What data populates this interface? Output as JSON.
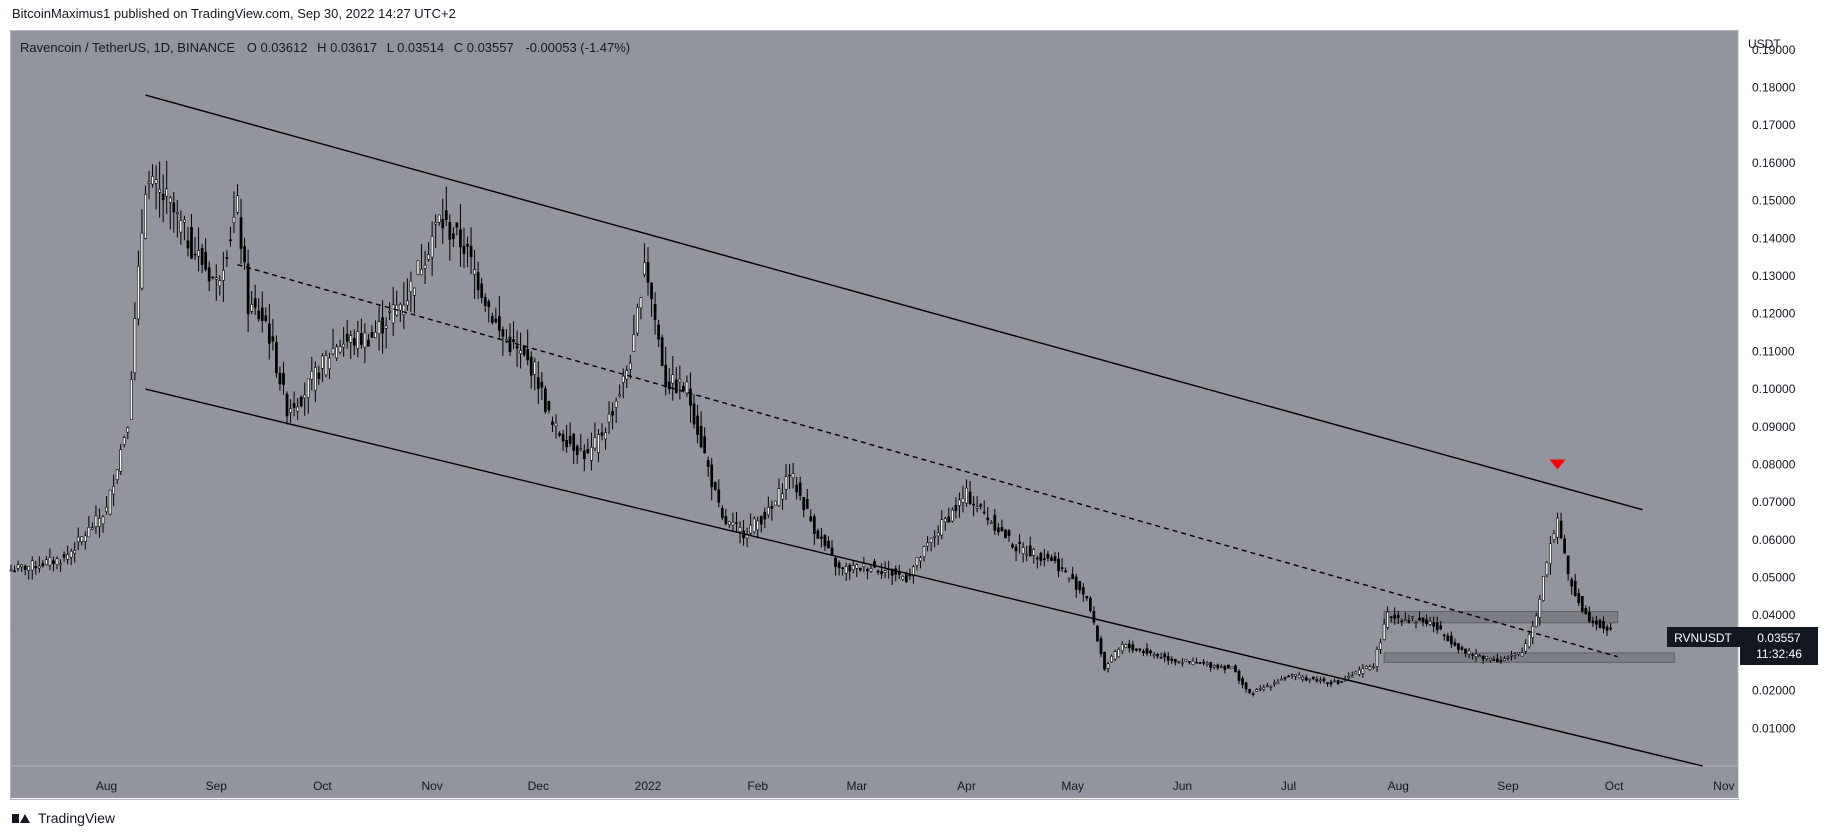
{
  "header": {
    "published": "BitcoinMaximus1 published on TradingView.com, Sep 30, 2022 14:27 UTC+2"
  },
  "legend": {
    "symbol": "Ravencoin / TetherUS, 1D, BINANCE",
    "o_label": "O",
    "o_value": "0.03612",
    "h_label": "H",
    "h_value": "0.03617",
    "l_label": "L",
    "l_value": "0.03514",
    "c_label": "C",
    "c_value": "0.03557",
    "change": "-0.00053 (-1.47%)"
  },
  "price_axis": {
    "currency": "USDT",
    "ticks": [
      "0.19000",
      "0.18000",
      "0.17000",
      "0.16000",
      "0.15000",
      "0.14000",
      "0.13000",
      "0.12000",
      "0.11000",
      "0.10000",
      "0.09000",
      "0.08000",
      "0.07000",
      "0.06000",
      "0.05000",
      "0.04000",
      "0.03000",
      "0.02000",
      "0.01000"
    ]
  },
  "time_axis": {
    "ticks": [
      "Aug",
      "Sep",
      "Oct",
      "Nov",
      "Dec",
      "2022",
      "Feb",
      "Mar",
      "Apr",
      "May",
      "Jun",
      "Jul",
      "Aug",
      "Sep",
      "Oct",
      "Nov"
    ]
  },
  "price_label": {
    "symbol": "RVNUSDT",
    "price": "0.03557",
    "countdown": "11:32:46"
  },
  "footer": {
    "brand": "TradingView"
  },
  "colors": {
    "background": "#93959e",
    "candle": "#000000",
    "marker": "#ff0000",
    "zone": "#7c7e86"
  },
  "chart_data": {
    "type": "candlestick",
    "title": "Ravencoin / TetherUS, 1D, BINANCE",
    "ylabel": "USDT",
    "ylim": [
      0,
      0.195
    ],
    "x_range": [
      "2021-07-05",
      "2022-11-05"
    ],
    "series": [
      {
        "name": "RVNUSDT",
        "close_path": [
          [
            "2021-07-05",
            0.052
          ],
          [
            "2021-07-20",
            0.055
          ],
          [
            "2021-08-01",
            0.068
          ],
          [
            "2021-08-07",
            0.092
          ],
          [
            "2021-08-12",
            0.155
          ],
          [
            "2021-08-18",
            0.15
          ],
          [
            "2021-08-25",
            0.138
          ],
          [
            "2021-09-01",
            0.128
          ],
          [
            "2021-09-07",
            0.148
          ],
          [
            "2021-09-10",
            0.122
          ],
          [
            "2021-09-15",
            0.118
          ],
          [
            "2021-09-21",
            0.095
          ],
          [
            "2021-09-25",
            0.098
          ],
          [
            "2021-10-05",
            0.112
          ],
          [
            "2021-10-15",
            0.114
          ],
          [
            "2021-10-25",
            0.125
          ],
          [
            "2021-11-03",
            0.145
          ],
          [
            "2021-11-10",
            0.138
          ],
          [
            "2021-11-20",
            0.115
          ],
          [
            "2021-11-30",
            0.105
          ],
          [
            "2021-12-05",
            0.09
          ],
          [
            "2021-12-15",
            0.082
          ],
          [
            "2021-12-20",
            0.09
          ],
          [
            "2021-12-25",
            0.102
          ],
          [
            "2021-12-28",
            0.112
          ],
          [
            "2021-12-31",
            0.135
          ],
          [
            "2022-01-06",
            0.102
          ],
          [
            "2022-01-12",
            0.1
          ],
          [
            "2022-01-22",
            0.065
          ],
          [
            "2022-01-28",
            0.062
          ],
          [
            "2022-02-05",
            0.068
          ],
          [
            "2022-02-10",
            0.078
          ],
          [
            "2022-02-17",
            0.063
          ],
          [
            "2022-02-24",
            0.052
          ],
          [
            "2022-03-05",
            0.053
          ],
          [
            "2022-03-15",
            0.05
          ],
          [
            "2022-03-25",
            0.064
          ],
          [
            "2022-04-01",
            0.072
          ],
          [
            "2022-04-08",
            0.065
          ],
          [
            "2022-04-15",
            0.058
          ],
          [
            "2022-04-25",
            0.055
          ],
          [
            "2022-05-05",
            0.045
          ],
          [
            "2022-05-10",
            0.026
          ],
          [
            "2022-05-15",
            0.032
          ],
          [
            "2022-05-30",
            0.028
          ],
          [
            "2022-06-15",
            0.026
          ],
          [
            "2022-06-20",
            0.019
          ],
          [
            "2022-07-01",
            0.024
          ],
          [
            "2022-07-15",
            0.022
          ],
          [
            "2022-07-25",
            0.027
          ],
          [
            "2022-07-29",
            0.04
          ],
          [
            "2022-08-10",
            0.038
          ],
          [
            "2022-08-20",
            0.03
          ],
          [
            "2022-08-30",
            0.028
          ],
          [
            "2022-09-05",
            0.03
          ],
          [
            "2022-09-09",
            0.04
          ],
          [
            "2022-09-12",
            0.055
          ],
          [
            "2022-09-15",
            0.066
          ],
          [
            "2022-09-18",
            0.05
          ],
          [
            "2022-09-23",
            0.04
          ],
          [
            "2022-09-30",
            0.0356
          ]
        ]
      }
    ],
    "trendlines": [
      {
        "style": "solid",
        "from": [
          "2021-08-12",
          0.178
        ],
        "to": [
          "2022-10-09",
          0.068
        ]
      },
      {
        "style": "solid",
        "from": [
          "2021-08-12",
          0.1
        ],
        "to": [
          "2022-10-26",
          0.0
        ]
      },
      {
        "style": "dashed",
        "from": [
          "2021-09-07",
          0.133
        ],
        "to": [
          "2022-10-02",
          0.029
        ]
      }
    ],
    "zones": [
      {
        "start": "2022-07-28",
        "end": "2022-10-02",
        "low": 0.038,
        "high": 0.041
      },
      {
        "start": "2022-07-28",
        "end": "2022-10-18",
        "low": 0.0275,
        "high": 0.03
      }
    ],
    "markers": [
      {
        "date": "2022-09-15",
        "price": 0.08,
        "shape": "triangle-down"
      }
    ],
    "last_price": 0.03557
  }
}
